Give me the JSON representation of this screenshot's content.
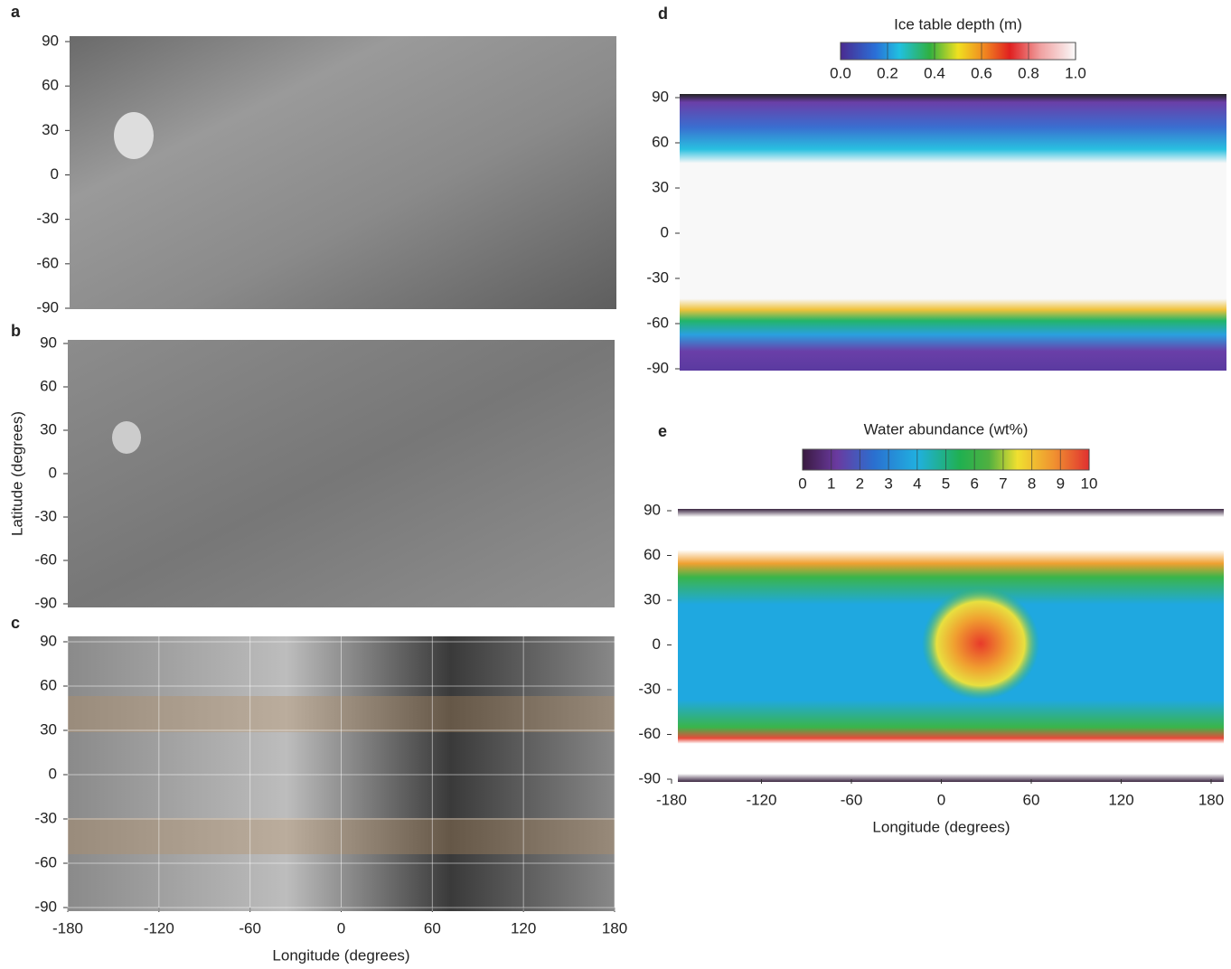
{
  "chart_data": [
    {
      "type": "image",
      "label": "a",
      "ylim": [
        -90,
        90
      ],
      "yticks": [
        90,
        60,
        30,
        0,
        -30,
        -60,
        -90
      ]
    },
    {
      "type": "image",
      "label": "b",
      "ylabel": "Latitude (degrees)",
      "ylim": [
        -90,
        90
      ],
      "yticks": [
        90,
        60,
        30,
        0,
        -30,
        -60,
        -90
      ]
    },
    {
      "type": "image",
      "label": "c",
      "xlabel": "Longitude (degrees)",
      "xlim": [
        -180,
        180
      ],
      "xticks": [
        -180,
        -120,
        -60,
        0,
        60,
        120,
        180
      ],
      "ylim": [
        -90,
        90
      ],
      "yticks": [
        90,
        60,
        30,
        0,
        -30,
        -60,
        -90
      ]
    },
    {
      "type": "image",
      "label": "d",
      "ylim": [
        -90,
        90
      ],
      "yticks": [
        90,
        60,
        30,
        0,
        -30,
        -60,
        -90
      ],
      "colorbar": {
        "title": "Ice table depth (m)",
        "lim": [
          0,
          1
        ],
        "ticks": [
          {
            "value": 0,
            "label": "0.0"
          },
          {
            "value": 0.2,
            "label": "0.2"
          },
          {
            "value": 0.4,
            "label": "0.4"
          },
          {
            "value": 0.6,
            "label": "0.6"
          },
          {
            "value": 0.8,
            "label": "0.8"
          },
          {
            "value": 1,
            "label": "1.0"
          }
        ]
      }
    },
    {
      "type": "image",
      "label": "e",
      "xlabel": "Longitude (degrees)",
      "xlim": [
        -180,
        180
      ],
      "xticks": [
        -180,
        -120,
        -60,
        0,
        60,
        120,
        180
      ],
      "ylim": [
        -90,
        90
      ],
      "yticks": [
        90,
        60,
        30,
        0,
        -30,
        -60,
        -90
      ],
      "colorbar": {
        "title": "Water abundance (wt%)",
        "lim": [
          0,
          10
        ],
        "ticks": [
          0,
          1,
          2,
          3,
          4,
          5,
          6,
          7,
          8,
          9,
          10
        ]
      }
    }
  ]
}
